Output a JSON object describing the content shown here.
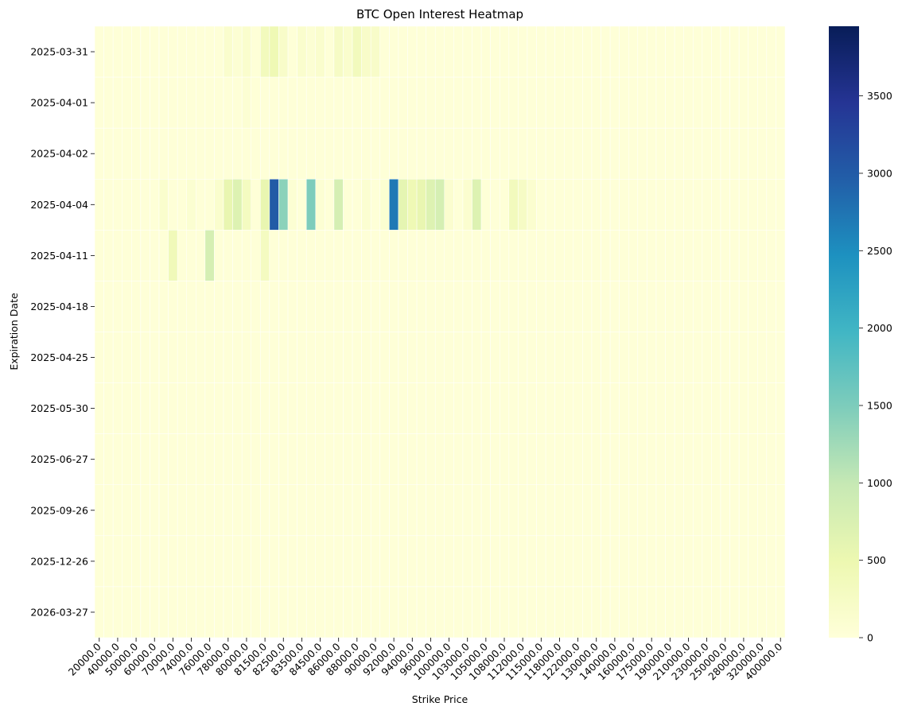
{
  "chart_data": {
    "type": "heatmap",
    "title": "BTC Open Interest Heatmap",
    "xlabel": "Strike Price",
    "ylabel": "Expiration Date",
    "y_categories": [
      "2025-03-31",
      "2025-04-01",
      "2025-04-02",
      "2025-04-04",
      "2025-04-11",
      "2025-04-18",
      "2025-04-25",
      "2025-05-30",
      "2025-06-27",
      "2025-09-26",
      "2025-12-26",
      "2026-03-27"
    ],
    "x_tick_labels": [
      "20000.0",
      "40000.0",
      "50000.0",
      "60000.0",
      "70000.0",
      "74000.0",
      "76000.0",
      "78000.0",
      "80000.0",
      "81500.0",
      "82500.0",
      "83500.0",
      "84500.0",
      "86000.0",
      "88000.0",
      "90000.0",
      "92000.0",
      "94000.0",
      "96000.0",
      "100000.0",
      "103000.0",
      "105000.0",
      "108000.0",
      "112000.0",
      "115000.0",
      "118000.0",
      "122000.0",
      "130000.0",
      "140000.0",
      "160000.0",
      "175000.0",
      "190000.0",
      "210000.0",
      "230000.0",
      "250000.0",
      "280000.0",
      "320000.0",
      "400000.0"
    ],
    "n_columns": 75,
    "colorscale": "YlGnBu",
    "color_range": [
      0,
      3950
    ],
    "colorbar_ticks": [
      0,
      500,
      1000,
      1500,
      2000,
      2500,
      3000,
      3500
    ],
    "rows": [
      [
        20,
        20,
        20,
        20,
        20,
        20,
        20,
        20,
        20,
        20,
        20,
        20,
        20,
        20,
        150,
        80,
        150,
        20,
        350,
        450,
        200,
        20,
        150,
        80,
        150,
        20,
        250,
        150,
        350,
        200,
        200,
        20,
        20,
        20,
        20,
        20,
        20,
        20,
        20,
        20,
        20,
        20,
        20,
        20,
        20,
        20,
        20,
        20,
        20,
        20,
        20,
        20,
        20,
        20,
        20,
        20,
        20,
        20,
        20,
        20,
        20,
        20,
        20,
        20,
        20,
        20,
        20,
        20,
        20,
        20,
        20,
        20,
        20,
        20,
        20
      ],
      [
        20,
        20,
        20,
        20,
        20,
        20,
        20,
        20,
        20,
        20,
        20,
        20,
        20,
        20,
        20,
        20,
        80,
        20,
        20,
        20,
        20,
        20,
        20,
        20,
        20,
        20,
        20,
        20,
        20,
        20,
        20,
        20,
        20,
        20,
        20,
        20,
        20,
        20,
        20,
        20,
        20,
        20,
        20,
        20,
        20,
        20,
        20,
        20,
        20,
        20,
        20,
        20,
        20,
        20,
        20,
        20,
        20,
        20,
        20,
        20,
        20,
        20,
        20,
        20,
        20,
        20,
        20,
        20,
        20,
        20,
        20,
        20,
        20,
        20,
        20
      ],
      [
        20,
        20,
        20,
        20,
        20,
        20,
        20,
        20,
        20,
        20,
        20,
        20,
        20,
        20,
        20,
        20,
        20,
        20,
        20,
        20,
        20,
        20,
        20,
        20,
        20,
        20,
        20,
        20,
        20,
        20,
        20,
        20,
        20,
        20,
        20,
        20,
        20,
        20,
        20,
        20,
        20,
        20,
        20,
        20,
        20,
        20,
        20,
        20,
        20,
        20,
        20,
        20,
        20,
        20,
        20,
        20,
        20,
        20,
        20,
        20,
        20,
        20,
        20,
        20,
        20,
        20,
        20,
        20,
        20,
        20,
        20,
        20,
        20,
        20,
        20
      ],
      [
        20,
        20,
        20,
        20,
        20,
        20,
        20,
        150,
        20,
        20,
        100,
        20,
        20,
        150,
        550,
        700,
        300,
        20,
        550,
        3000,
        1400,
        80,
        20,
        1500,
        80,
        20,
        800,
        20,
        20,
        100,
        20,
        100,
        2700,
        600,
        450,
        550,
        700,
        800,
        120,
        20,
        120,
        700,
        20,
        20,
        20,
        350,
        250,
        120,
        20,
        20,
        20,
        20,
        20,
        20,
        20,
        20,
        20,
        20,
        20,
        20,
        20,
        20,
        20,
        20,
        20,
        20,
        20,
        20,
        20,
        20,
        20,
        20,
        20,
        20,
        20
      ],
      [
        20,
        20,
        20,
        20,
        20,
        20,
        20,
        20,
        400,
        20,
        20,
        20,
        800,
        20,
        20,
        20,
        20,
        20,
        300,
        20,
        20,
        20,
        20,
        20,
        20,
        20,
        20,
        20,
        20,
        20,
        20,
        20,
        20,
        20,
        20,
        20,
        20,
        20,
        20,
        20,
        20,
        20,
        20,
        20,
        20,
        20,
        20,
        20,
        20,
        20,
        20,
        20,
        20,
        20,
        20,
        20,
        20,
        20,
        20,
        20,
        20,
        20,
        20,
        20,
        20,
        20,
        20,
        20,
        20,
        20,
        20,
        20,
        20,
        20,
        20
      ],
      [
        20,
        20,
        20,
        20,
        20,
        20,
        20,
        20,
        20,
        20,
        20,
        20,
        20,
        20,
        20,
        20,
        20,
        20,
        20,
        20,
        20,
        20,
        20,
        20,
        20,
        20,
        20,
        20,
        20,
        20,
        20,
        20,
        20,
        20,
        20,
        20,
        20,
        20,
        20,
        20,
        20,
        20,
        20,
        20,
        20,
        20,
        20,
        20,
        20,
        20,
        20,
        20,
        20,
        20,
        20,
        20,
        20,
        20,
        20,
        20,
        20,
        20,
        20,
        20,
        20,
        20,
        20,
        20,
        20,
        20,
        20,
        20,
        20,
        20,
        20
      ],
      [
        20,
        20,
        20,
        20,
        20,
        20,
        20,
        20,
        20,
        20,
        20,
        20,
        20,
        20,
        20,
        20,
        20,
        20,
        20,
        20,
        20,
        20,
        20,
        20,
        20,
        20,
        20,
        20,
        20,
        20,
        20,
        20,
        20,
        20,
        20,
        20,
        20,
        20,
        20,
        20,
        20,
        20,
        20,
        20,
        20,
        20,
        20,
        20,
        20,
        20,
        20,
        20,
        20,
        20,
        20,
        20,
        20,
        20,
        20,
        20,
        20,
        20,
        20,
        20,
        20,
        20,
        20,
        20,
        20,
        20,
        20,
        20,
        20,
        20,
        20
      ],
      [
        20,
        20,
        20,
        20,
        20,
        20,
        20,
        20,
        20,
        20,
        20,
        20,
        20,
        20,
        20,
        20,
        20,
        20,
        20,
        20,
        20,
        20,
        20,
        20,
        20,
        20,
        20,
        20,
        20,
        20,
        20,
        20,
        20,
        20,
        20,
        20,
        20,
        20,
        20,
        20,
        20,
        20,
        20,
        20,
        20,
        20,
        20,
        20,
        20,
        20,
        20,
        20,
        20,
        20,
        20,
        20,
        20,
        20,
        20,
        20,
        20,
        20,
        20,
        20,
        20,
        20,
        20,
        20,
        20,
        20,
        20,
        20,
        20,
        20,
        20
      ],
      [
        20,
        20,
        20,
        20,
        20,
        20,
        20,
        20,
        20,
        20,
        20,
        20,
        20,
        20,
        20,
        20,
        20,
        20,
        20,
        20,
        20,
        20,
        20,
        20,
        20,
        20,
        20,
        20,
        20,
        20,
        20,
        20,
        20,
        20,
        20,
        20,
        20,
        20,
        20,
        20,
        20,
        20,
        20,
        20,
        20,
        20,
        20,
        20,
        20,
        20,
        20,
        20,
        20,
        20,
        20,
        20,
        20,
        20,
        20,
        20,
        20,
        20,
        20,
        20,
        20,
        20,
        20,
        20,
        20,
        20,
        20,
        20,
        20,
        20,
        20
      ],
      [
        20,
        20,
        20,
        20,
        20,
        20,
        20,
        20,
        20,
        20,
        20,
        20,
        20,
        20,
        20,
        20,
        20,
        20,
        20,
        20,
        20,
        20,
        20,
        20,
        20,
        20,
        20,
        20,
        20,
        20,
        20,
        20,
        20,
        20,
        20,
        20,
        20,
        20,
        20,
        20,
        20,
        20,
        20,
        20,
        20,
        20,
        20,
        20,
        20,
        20,
        20,
        20,
        20,
        20,
        20,
        20,
        20,
        20,
        20,
        20,
        20,
        20,
        20,
        20,
        20,
        20,
        20,
        20,
        20,
        20,
        20,
        20,
        20,
        20,
        20
      ],
      [
        20,
        20,
        20,
        20,
        20,
        20,
        20,
        20,
        20,
        20,
        20,
        20,
        20,
        20,
        20,
        20,
        20,
        20,
        20,
        20,
        20,
        20,
        20,
        20,
        20,
        20,
        20,
        20,
        20,
        20,
        20,
        20,
        20,
        20,
        20,
        20,
        20,
        20,
        20,
        20,
        20,
        20,
        20,
        20,
        20,
        20,
        20,
        20,
        20,
        20,
        20,
        20,
        20,
        20,
        20,
        20,
        20,
        20,
        20,
        20,
        20,
        20,
        20,
        20,
        20,
        20,
        20,
        20,
        20,
        20,
        20,
        20,
        20,
        20,
        20
      ],
      [
        20,
        20,
        20,
        20,
        20,
        20,
        20,
        20,
        20,
        20,
        20,
        20,
        20,
        20,
        20,
        20,
        20,
        20,
        20,
        20,
        20,
        20,
        20,
        20,
        20,
        20,
        20,
        20,
        20,
        20,
        20,
        20,
        20,
        20,
        20,
        20,
        20,
        20,
        20,
        20,
        20,
        20,
        20,
        20,
        20,
        20,
        20,
        20,
        20,
        20,
        20,
        20,
        20,
        20,
        20,
        20,
        20,
        20,
        20,
        20,
        20,
        20,
        20,
        20,
        20,
        20,
        20,
        20,
        20,
        20,
        20,
        20,
        20,
        20,
        20
      ]
    ]
  }
}
